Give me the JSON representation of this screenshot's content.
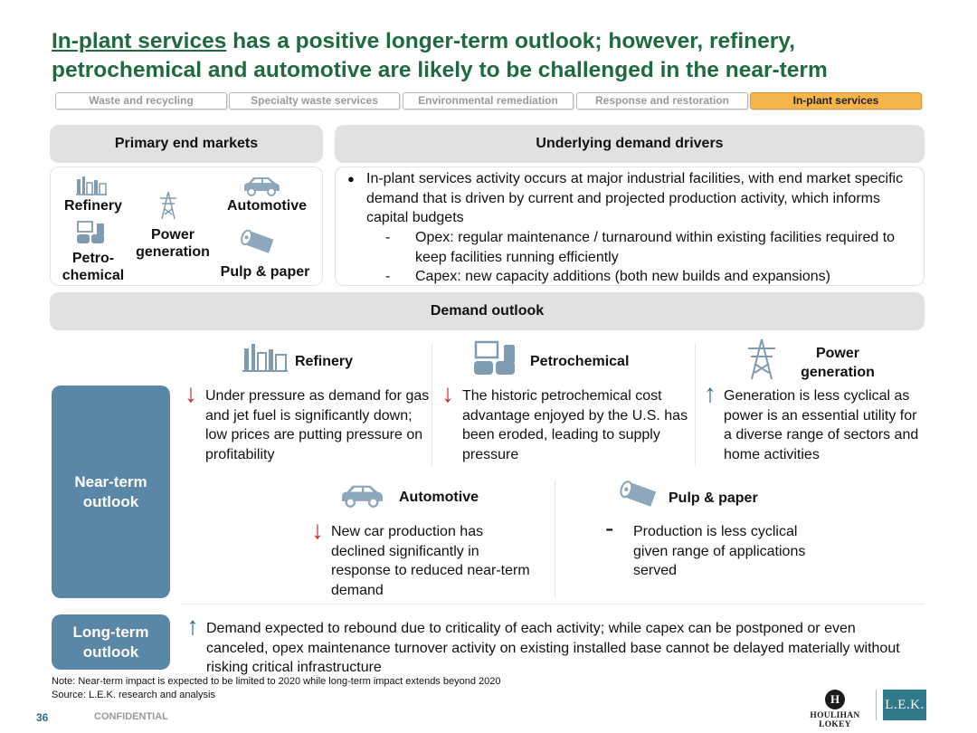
{
  "title": {
    "underlined": "In-plant services",
    "rest": " has a positive longer-term outlook; however, refinery, petrochemical and automotive are likely to be challenged in the near-term"
  },
  "tabs": [
    {
      "label": "Waste and recycling",
      "active": false
    },
    {
      "label": "Specialty waste services",
      "active": false
    },
    {
      "label": "Environmental remediation",
      "active": false
    },
    {
      "label": "Response and restoration",
      "active": false
    },
    {
      "label": "In-plant services",
      "active": true
    }
  ],
  "primary": {
    "header": "Primary end markets",
    "refinery": "Refinery",
    "automotive": "Automotive",
    "power": "Power generation",
    "petro": "Petro- chemical",
    "pulp": "Pulp & paper"
  },
  "drivers": {
    "header": "Underlying demand drivers",
    "bullet": "In-plant services activity occurs at major industrial facilities, with end market specific demand that is driven by current and projected production activity, which informs capital budgets",
    "sub1": "Opex: regular maintenance / turnaround within existing facilities required to keep facilities running efficiently",
    "sub2": "Capex: new capacity additions (both new builds and expansions)"
  },
  "outlook": {
    "header": "Demand outlook",
    "near_label": "Near-term outlook",
    "long_label": "Long-term outlook",
    "refinery": {
      "name": "Refinery",
      "arrow": "↓",
      "text": "Under pressure as demand for gas and jet fuel is significantly down; low prices are putting pressure on profitability"
    },
    "petrochemical": {
      "name": "Petrochemical",
      "arrow": "↓",
      "text": "The historic petrochemical cost advantage enjoyed by the U.S. has been eroded, leading to supply pressure"
    },
    "power": {
      "name": "Power generation",
      "arrow": "↑",
      "text": "Generation is less cyclical as power is an essential utility for a diverse range of sectors and home activities"
    },
    "automotive": {
      "name": "Automotive",
      "arrow": "↓",
      "text": "New car production has declined significantly in response to reduced near-term demand"
    },
    "pulp": {
      "name": "Pulp & paper",
      "arrow": "-",
      "text": "Production is less cyclical given range of applications served"
    },
    "long": {
      "arrow": "↑",
      "text": "Demand expected to rebound due to criticality of each activity; while capex can be postponed or even canceled, opex maintenance turnover activity on existing installed base cannot be delayed materially without risking critical infrastructure"
    }
  },
  "footer": {
    "note": "Note: Near-term impact is expected to be limited to 2020 while long-term impact extends beyond 2020",
    "source": "Source: L.E.K. research and analysis",
    "page": "36",
    "confidential": "CONFIDENTIAL",
    "houlihan": "HOULIHAN LOKEY",
    "houlihan_mark": "H",
    "lek": "L.E.K."
  },
  "colors": {
    "accent_green": "#1f6b3e",
    "side_blue": "#5a87a7",
    "active_tab": "#f5b44a",
    "down_red": "#cc2a2a",
    "up_blue": "#2f6e8d"
  }
}
